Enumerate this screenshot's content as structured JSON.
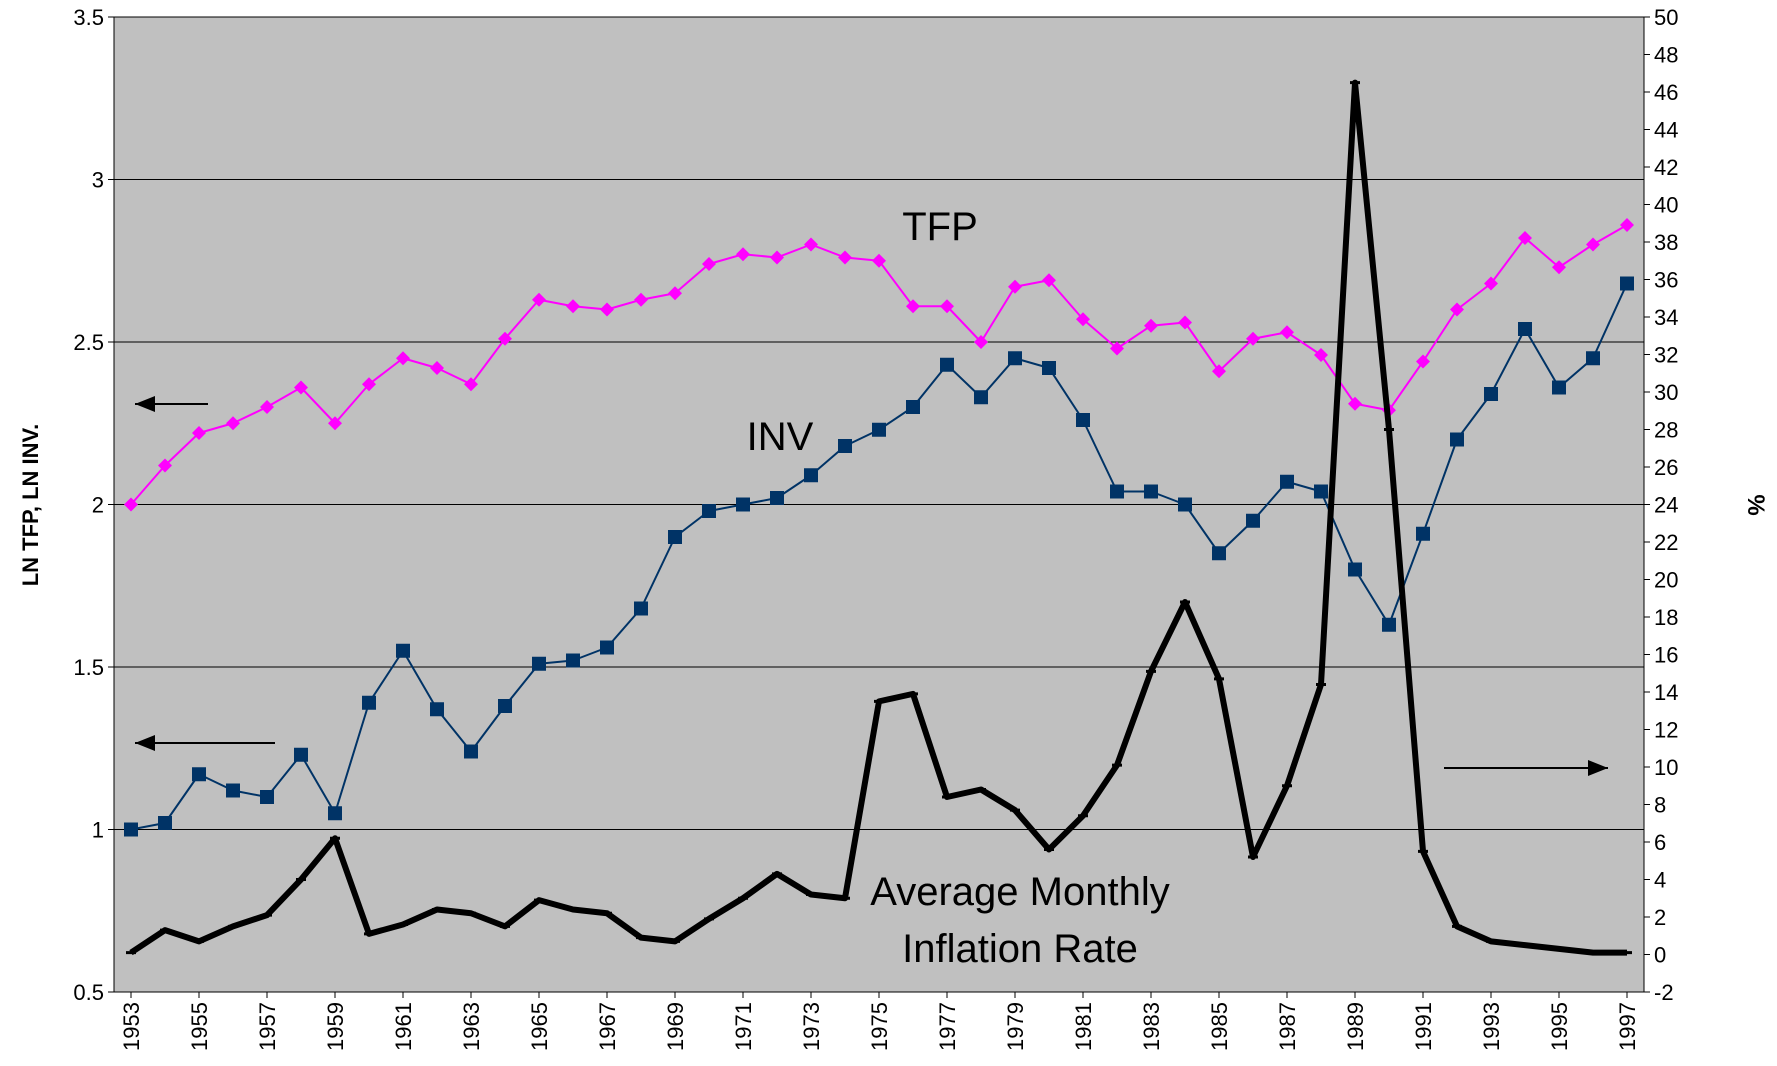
{
  "chart_data": {
    "type": "line",
    "x": [
      1953,
      1954,
      1955,
      1956,
      1957,
      1958,
      1959,
      1960,
      1961,
      1962,
      1963,
      1964,
      1965,
      1966,
      1967,
      1968,
      1969,
      1970,
      1971,
      1972,
      1973,
      1974,
      1975,
      1976,
      1977,
      1978,
      1979,
      1980,
      1981,
      1982,
      1983,
      1984,
      1985,
      1986,
      1987,
      1988,
      1989,
      1990,
      1991,
      1992,
      1993,
      1994,
      1995,
      1996,
      1997
    ],
    "xlim": [
      1952.5,
      1997.5
    ],
    "xticks": [
      1953,
      1955,
      1957,
      1959,
      1961,
      1963,
      1965,
      1967,
      1969,
      1971,
      1973,
      1975,
      1977,
      1979,
      1981,
      1983,
      1985,
      1987,
      1989,
      1991,
      1993,
      1995,
      1997
    ],
    "ylabel": "LN TFP, LN INV.",
    "y2label": "%",
    "ylim": [
      0.5,
      3.5
    ],
    "yticks": [
      0.5,
      1,
      1.5,
      2,
      2.5,
      3,
      3.5
    ],
    "y2lim": [
      -2,
      50
    ],
    "y2ticks": [
      -2,
      0,
      2,
      4,
      6,
      8,
      10,
      12,
      14,
      16,
      18,
      20,
      22,
      24,
      26,
      28,
      30,
      32,
      34,
      36,
      38,
      40,
      42,
      44,
      46,
      48,
      50
    ],
    "grid": true,
    "background": "#c0c0c0",
    "annotations": [
      "TFP",
      "INV",
      "Average Monthly",
      "Inflation Rate"
    ],
    "series": [
      {
        "name": "TFP",
        "color": "#ff00ff",
        "marker": "diamond",
        "values": [
          2.0,
          2.12,
          2.22,
          2.25,
          2.3,
          2.36,
          2.25,
          2.37,
          2.45,
          2.42,
          2.37,
          2.51,
          2.63,
          2.61,
          2.6,
          2.63,
          2.65,
          2.74,
          2.77,
          2.76,
          2.8,
          2.76,
          2.75,
          2.61,
          2.61,
          2.5,
          2.67,
          2.69,
          2.57,
          2.48,
          2.55,
          2.56,
          2.41,
          2.51,
          2.53,
          2.46,
          2.31,
          2.29,
          2.44,
          2.6,
          2.68,
          2.82,
          2.73,
          2.8,
          2.86
        ]
      },
      {
        "name": "INV",
        "color": "#003366",
        "marker": "square",
        "values": [
          1.0,
          1.02,
          1.17,
          1.12,
          1.1,
          1.23,
          1.05,
          1.39,
          1.55,
          1.37,
          1.24,
          1.38,
          1.51,
          1.52,
          1.56,
          1.68,
          1.9,
          1.98,
          2.0,
          2.02,
          2.09,
          2.18,
          2.23,
          2.3,
          2.43,
          2.33,
          2.45,
          2.42,
          2.26,
          2.04,
          2.04,
          2.0,
          1.85,
          1.95,
          2.07,
          2.04,
          1.8,
          1.63,
          1.91,
          2.2,
          2.34,
          2.54,
          2.36,
          2.45,
          2.68
        ]
      },
      {
        "name": "Average Monthly Inflation Rate",
        "color": "#000000",
        "marker": "dash",
        "axis": "y2",
        "values": [
          0.1,
          1.3,
          0.7,
          1.5,
          2.1,
          4.0,
          6.2,
          1.1,
          1.6,
          2.4,
          2.2,
          1.5,
          2.9,
          2.4,
          2.2,
          0.9,
          0.7,
          1.9,
          3.0,
          4.3,
          3.2,
          3.0,
          13.5,
          13.9,
          8.4,
          8.8,
          7.7,
          5.6,
          7.4,
          10.1,
          15.1,
          18.8,
          14.7,
          5.2,
          9.0,
          14.4,
          46.5,
          28.0,
          5.5,
          1.5,
          0.7,
          0.5,
          0.3,
          0.1,
          0.1
        ]
      }
    ]
  }
}
